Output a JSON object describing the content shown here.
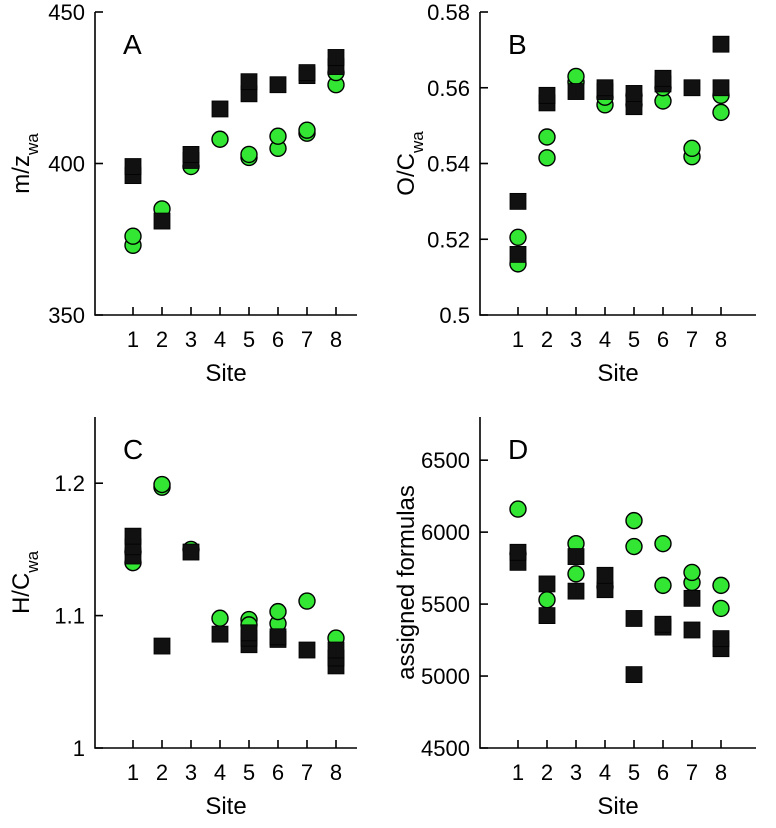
{
  "chart_data": [
    {
      "type": "scatter",
      "panel": "A",
      "xlabel": "Site",
      "ylabel_main": "m/z",
      "ylabel_sub": "wa",
      "categories": [
        "1",
        "2",
        "3",
        "4",
        "5",
        "6",
        "7",
        "8"
      ],
      "ylim": [
        350,
        450
      ],
      "yticks": [
        "350",
        "400",
        "450"
      ],
      "series": [
        {
          "name": "circles",
          "marker": "circle",
          "color": "#33e633",
          "points": [
            [
              1,
              373
            ],
            [
              1,
              376
            ],
            [
              2,
              385
            ],
            [
              3,
              399
            ],
            [
              4,
              408
            ],
            [
              5,
              402
            ],
            [
              5,
              403
            ],
            [
              6,
              405
            ],
            [
              6,
              409
            ],
            [
              7,
              410
            ],
            [
              7,
              411
            ],
            [
              8,
              426
            ],
            [
              8,
              430
            ]
          ]
        },
        {
          "name": "squares",
          "marker": "square",
          "color": "#111111",
          "points": [
            [
              1,
              396
            ],
            [
              1,
              399
            ],
            [
              2,
              381
            ],
            [
              3,
              401
            ],
            [
              3,
              403
            ],
            [
              4,
              418
            ],
            [
              5,
              423
            ],
            [
              5,
              427
            ],
            [
              6,
              426
            ],
            [
              7,
              429
            ],
            [
              7,
              430
            ],
            [
              8,
              432
            ],
            [
              8,
              435
            ]
          ]
        }
      ]
    },
    {
      "type": "scatter",
      "panel": "B",
      "xlabel": "Site",
      "ylabel_main": "O/C",
      "ylabel_sub": "wa",
      "categories": [
        "1",
        "2",
        "3",
        "4",
        "5",
        "6",
        "7",
        "8"
      ],
      "ylim": [
        0.5,
        0.58
      ],
      "yticks": [
        "0.5",
        "0.52",
        "0.54",
        "0.56",
        "0.58"
      ],
      "series": [
        {
          "name": "circles",
          "marker": "circle",
          "color": "#33e633",
          "points": [
            [
              1,
              0.5135
            ],
            [
              1,
              0.5205
            ],
            [
              2,
              0.5415
            ],
            [
              2,
              0.547
            ],
            [
              3,
              0.5615
            ],
            [
              3,
              0.563
            ],
            [
              4,
              0.5555
            ],
            [
              4,
              0.5575
            ],
            [
              5,
              0.5555
            ],
            [
              5,
              0.558
            ],
            [
              6,
              0.5565
            ],
            [
              6,
              0.56
            ],
            [
              7,
              0.5418
            ],
            [
              7,
              0.544
            ],
            [
              8,
              0.5535
            ],
            [
              8,
              0.558
            ]
          ]
        },
        {
          "name": "squares",
          "marker": "square",
          "color": "#111111",
          "points": [
            [
              1,
              0.516
            ],
            [
              1,
              0.53
            ],
            [
              2,
              0.556
            ],
            [
              2,
              0.558
            ],
            [
              3,
              0.559
            ],
            [
              4,
              0.559
            ],
            [
              4,
              0.56
            ],
            [
              5,
              0.555
            ],
            [
              5,
              0.5585
            ],
            [
              6,
              0.561
            ],
            [
              6,
              0.5625
            ],
            [
              7,
              0.56
            ],
            [
              8,
              0.56
            ],
            [
              8,
              0.5715
            ]
          ]
        }
      ]
    },
    {
      "type": "scatter",
      "panel": "C",
      "xlabel": "Site",
      "ylabel_main": "H/C",
      "ylabel_sub": "wa",
      "categories": [
        "1",
        "2",
        "3",
        "4",
        "5",
        "6",
        "7",
        "8"
      ],
      "ylim": [
        1.0,
        1.25
      ],
      "yticks": [
        "1",
        "1.1",
        "1.2"
      ],
      "series": [
        {
          "name": "circles",
          "marker": "circle",
          "color": "#33e633",
          "points": [
            [
              1,
              1.14
            ],
            [
              1,
              1.148
            ],
            [
              2,
              1.197
            ],
            [
              2,
              1.199
            ],
            [
              3,
              1.15
            ],
            [
              4,
              1.098
            ],
            [
              5,
              1.097
            ],
            [
              5,
              1.093
            ],
            [
              6,
              1.094
            ],
            [
              6,
              1.103
            ],
            [
              7,
              1.111
            ],
            [
              8,
              1.083
            ]
          ]
        },
        {
          "name": "squares",
          "marker": "square",
          "color": "#111111",
          "points": [
            [
              1,
              1.145
            ],
            [
              1,
              1.152
            ],
            [
              1,
              1.16
            ],
            [
              2,
              1.077
            ],
            [
              3,
              1.148
            ],
            [
              4,
              1.086
            ],
            [
              5,
              1.078
            ],
            [
              5,
              1.083
            ],
            [
              5,
              1.087
            ],
            [
              6,
              1.082
            ],
            [
              6,
              1.084
            ],
            [
              7,
              1.074
            ],
            [
              8,
              1.062
            ],
            [
              8,
              1.068
            ],
            [
              8,
              1.074
            ]
          ]
        }
      ]
    },
    {
      "type": "scatter",
      "panel": "D",
      "xlabel": "Site",
      "ylabel_main": "assigned formulas",
      "ylabel_sub": "",
      "categories": [
        "1",
        "2",
        "3",
        "4",
        "5",
        "6",
        "7",
        "8"
      ],
      "ylim": [
        4500,
        6800
      ],
      "yticks": [
        "4500",
        "5000",
        "5500",
        "6000",
        "6500"
      ],
      "series": [
        {
          "name": "circles",
          "marker": "circle",
          "color": "#33e633",
          "points": [
            [
              1,
              6160
            ],
            [
              1,
              5850
            ],
            [
              2,
              5530
            ],
            [
              3,
              5710
            ],
            [
              3,
              5920
            ],
            [
              4,
              5620
            ],
            [
              5,
              5900
            ],
            [
              5,
              6080
            ],
            [
              6,
              5630
            ],
            [
              6,
              5920
            ],
            [
              7,
              5650
            ],
            [
              7,
              5720
            ],
            [
              8,
              5470
            ],
            [
              8,
              5630
            ]
          ]
        },
        {
          "name": "squares",
          "marker": "square",
          "color": "#111111",
          "points": [
            [
              1,
              5790
            ],
            [
              1,
              5860
            ],
            [
              2,
              5420
            ],
            [
              2,
              5640
            ],
            [
              3,
              5590
            ],
            [
              3,
              5830
            ],
            [
              4,
              5600
            ],
            [
              4,
              5700
            ],
            [
              5,
              5010
            ],
            [
              5,
              5400
            ],
            [
              6,
              5340
            ],
            [
              6,
              5360
            ],
            [
              7,
              5320
            ],
            [
              7,
              5540
            ],
            [
              8,
              5190
            ],
            [
              8,
              5260
            ]
          ]
        }
      ]
    }
  ]
}
